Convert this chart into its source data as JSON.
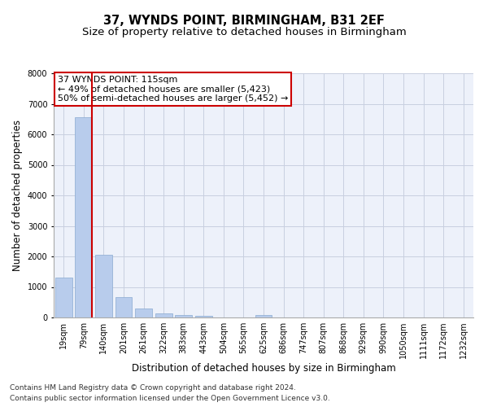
{
  "title": "37, WYNDS POINT, BIRMINGHAM, B31 2EF",
  "subtitle": "Size of property relative to detached houses in Birmingham",
  "xlabel": "Distribution of detached houses by size in Birmingham",
  "ylabel": "Number of detached properties",
  "categories": [
    "19sqm",
    "79sqm",
    "140sqm",
    "201sqm",
    "261sqm",
    "322sqm",
    "383sqm",
    "443sqm",
    "504sqm",
    "565sqm",
    "625sqm",
    "686sqm",
    "747sqm",
    "807sqm",
    "868sqm",
    "929sqm",
    "990sqm",
    "1050sqm",
    "1111sqm",
    "1172sqm",
    "1232sqm"
  ],
  "values": [
    1300,
    6550,
    2050,
    680,
    290,
    130,
    75,
    55,
    0,
    0,
    75,
    0,
    0,
    0,
    0,
    0,
    0,
    0,
    0,
    0,
    0
  ],
  "bar_color": "#b8ccec",
  "bar_edge_color": "#8aaad0",
  "vline_x_index": 1,
  "vline_color": "#cc0000",
  "annotation_line1": "37 WYNDS POINT: 115sqm",
  "annotation_line2": "← 49% of detached houses are smaller (5,423)",
  "annotation_line3": "50% of semi-detached houses are larger (5,452) →",
  "annotation_box_color": "white",
  "annotation_box_edge_color": "#cc0000",
  "ylim": [
    0,
    8000
  ],
  "yticks": [
    0,
    1000,
    2000,
    3000,
    4000,
    5000,
    6000,
    7000,
    8000
  ],
  "background_color": "#edf1fa",
  "grid_color": "#c8cfe0",
  "footer1": "Contains HM Land Registry data © Crown copyright and database right 2024.",
  "footer2": "Contains public sector information licensed under the Open Government Licence v3.0.",
  "title_fontsize": 10.5,
  "subtitle_fontsize": 9.5,
  "axis_label_fontsize": 8.5,
  "tick_fontsize": 7,
  "annotation_fontsize": 8,
  "footer_fontsize": 6.5
}
